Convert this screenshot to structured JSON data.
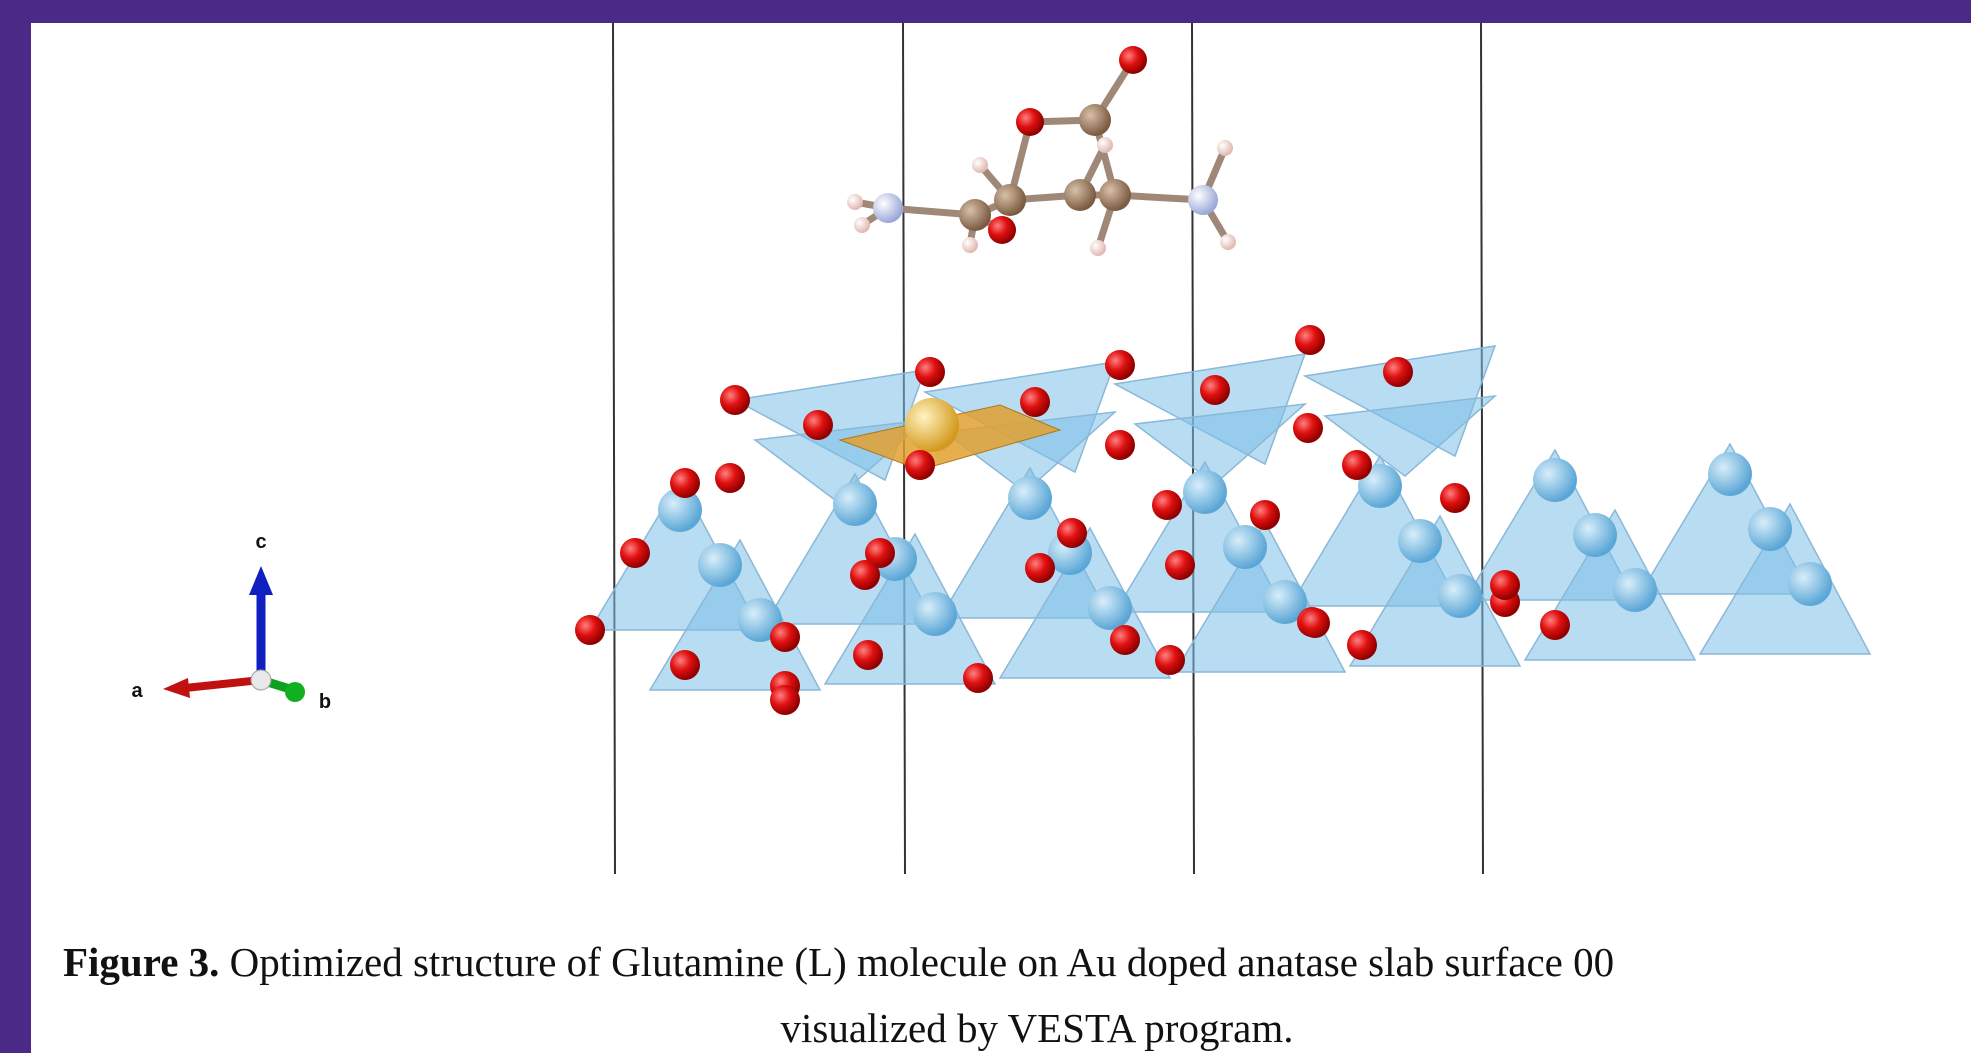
{
  "figure": {
    "axes": {
      "a": "a",
      "b": "b",
      "c": "c"
    },
    "caption": {
      "label": "Figure 3.",
      "line1": "Optimized structure of Glutamine (L) molecule on Au doped anatase slab surface 00",
      "line2": "visualized by VESTA program."
    }
  }
}
